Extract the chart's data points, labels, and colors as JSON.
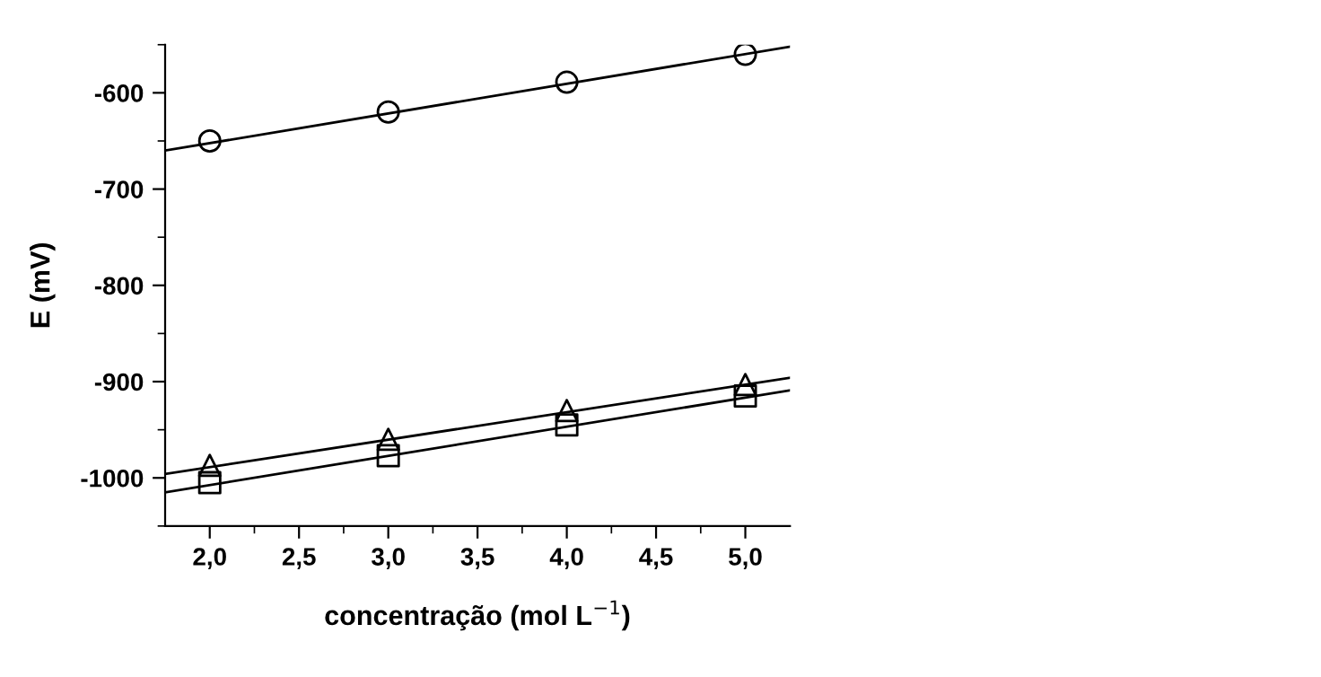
{
  "chart_data": {
    "type": "scatter",
    "xlabel": "concentração (mol L$^{−1}$)",
    "ylabel": "E (mV)",
    "xlim": [
      1.75,
      5.25
    ],
    "ylim": [
      -1050,
      -550
    ],
    "xticks": [
      {
        "value": 2,
        "label": "2,0"
      },
      {
        "value": 2.25,
        "label": null
      },
      {
        "value": 2.5,
        "label": "2,5"
      },
      {
        "value": 2.75,
        "label": null
      },
      {
        "value": 3,
        "label": "3,0"
      },
      {
        "value": 3.25,
        "label": null
      },
      {
        "value": 3.5,
        "label": "3,5"
      },
      {
        "value": 3.75,
        "label": null
      },
      {
        "value": 4,
        "label": "4,0"
      },
      {
        "value": 4.25,
        "label": null
      },
      {
        "value": 4.5,
        "label": "4,5"
      },
      {
        "value": 4.75,
        "label": null
      },
      {
        "value": 5,
        "label": "5,0"
      }
    ],
    "yticks": [
      {
        "value": -1050,
        "label": null
      },
      -1000,
      {
        "value": -950,
        "label": null
      },
      -900,
      {
        "value": -850,
        "label": null
      },
      -800,
      {
        "value": -750,
        "label": null
      },
      -700,
      {
        "value": -650,
        "label": null
      },
      -600,
      {
        "value": -550,
        "label": null
      }
    ],
    "grid": false,
    "legend": false,
    "series": [
      {
        "marker": "circle",
        "color": "#000000",
        "x": [
          2,
          3,
          4,
          5
        ],
        "values": [
          -650,
          -620,
          -589,
          -560
        ]
      },
      {
        "marker": "triangle",
        "color": "#000000",
        "x": [
          2,
          3,
          4,
          5
        ],
        "values": [
          -987,
          -960,
          -930,
          -903
        ]
      },
      {
        "marker": "square",
        "color": "#000000",
        "x": [
          2,
          3,
          4,
          5
        ],
        "values": [
          -1005,
          -977,
          -945,
          -915
        ]
      },
      {
        "type": "line",
        "marker": "none",
        "line_style": "solid",
        "color": "#000000",
        "x": [
          1.75,
          5.25
        ],
        "values": [
          -660,
          -552
        ]
      },
      {
        "type": "line",
        "marker": "none",
        "line_style": "solid",
        "color": "#000000",
        "x": [
          1.75,
          5.25
        ],
        "values": [
          -996,
          -896
        ]
      },
      {
        "type": "line",
        "marker": "none",
        "line_style": "solid",
        "color": "#000000",
        "x": [
          1.75,
          5.25
        ],
        "values": [
          -1015,
          -909
        ]
      }
    ]
  }
}
